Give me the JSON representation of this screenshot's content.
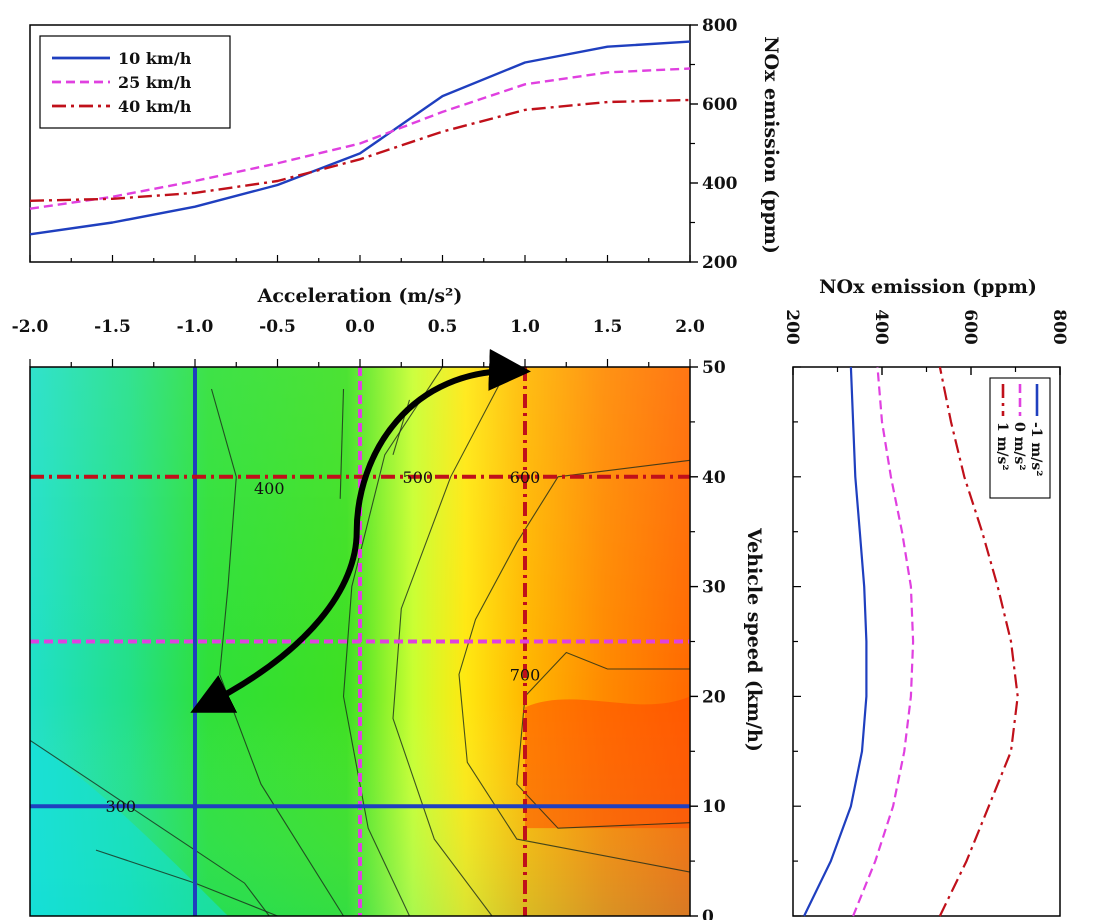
{
  "chart_data": [
    {
      "type": "line",
      "title": "",
      "xlabel": "Acceleration (m/s²)",
      "ylabel": "NOx emission (ppm)",
      "xlim": [
        -2.0,
        2.0
      ],
      "ylim": [
        200,
        800
      ],
      "x_ticks": [
        "-2.0",
        "-1.5",
        "-1.0",
        "-0.5",
        "0.0",
        "0.5",
        "1.0",
        "1.5",
        "2.0"
      ],
      "y_ticks": [
        "200",
        "400",
        "600",
        "800"
      ],
      "legend_position": "top-left",
      "x": [
        -2.0,
        -1.5,
        -1.0,
        -0.5,
        0.0,
        0.5,
        1.0,
        1.5,
        2.0
      ],
      "series": [
        {
          "name": "10 km/h",
          "color": "#1f3fbf",
          "dash": "solid",
          "values": [
            270,
            300,
            340,
            395,
            475,
            620,
            705,
            745,
            758
          ]
        },
        {
          "name": "25 km/h",
          "color": "#e040e0",
          "dash": "dashed",
          "values": [
            335,
            365,
            405,
            450,
            500,
            580,
            650,
            680,
            690
          ]
        },
        {
          "name": "40 km/h",
          "color": "#c0101a",
          "dash": "dashdot",
          "values": [
            355,
            360,
            375,
            405,
            460,
            530,
            585,
            605,
            610
          ]
        }
      ]
    },
    {
      "type": "heatmap",
      "title": "",
      "xlabel": "",
      "ylabel": "Vehicle speed (km/h)",
      "xlim": [
        -2.0,
        2.0
      ],
      "ylim": [
        0,
        50
      ],
      "y_ticks": [
        "0",
        "10",
        "20",
        "30",
        "40",
        "50"
      ],
      "contour_labels": [
        {
          "text": "300",
          "x": -1.45,
          "y": 10
        },
        {
          "text": "400",
          "x": -0.55,
          "y": 39
        },
        {
          "text": "500",
          "x": 0.35,
          "y": 40
        },
        {
          "text": "600",
          "x": 1.0,
          "y": 40
        },
        {
          "text": "700",
          "x": 1.0,
          "y": 22
        }
      ],
      "reference_lines": [
        {
          "orientation": "vertical",
          "value": -1.0,
          "color": "#1f3fbf",
          "dash": "solid"
        },
        {
          "orientation": "vertical",
          "value": 0.0,
          "color": "#e040e0",
          "dash": "dashed"
        },
        {
          "orientation": "vertical",
          "value": 1.0,
          "color": "#c0101a",
          "dash": "dashdot"
        },
        {
          "orientation": "horizontal",
          "value": 10,
          "color": "#1f3fbf",
          "dash": "solid"
        },
        {
          "orientation": "horizontal",
          "value": 25,
          "color": "#e040e0",
          "dash": "dashed"
        },
        {
          "orientation": "horizontal",
          "value": 40,
          "color": "#c0101a",
          "dash": "dashdot"
        }
      ],
      "annotation": "curved double-headed arrow from (-1.0, 19) to (1.0, 50)"
    },
    {
      "type": "line",
      "title": "",
      "xlabel": "NOx emission (ppm)",
      "ylabel": "",
      "xlim": [
        200,
        800
      ],
      "ylim": [
        0,
        50
      ],
      "x_ticks": [
        "200",
        "400",
        "600",
        "800"
      ],
      "legend_position": "top-right",
      "y": [
        0,
        5,
        10,
        15,
        20,
        25,
        30,
        35,
        40,
        45,
        50
      ],
      "series": [
        {
          "name": "-1 m/s²",
          "color": "#1f3fbf",
          "dash": "solid",
          "values": [
            225,
            285,
            330,
            355,
            365,
            365,
            360,
            350,
            340,
            335,
            330
          ]
        },
        {
          "name": "0 m/s²",
          "color": "#e040e0",
          "dash": "dashed",
          "values": [
            335,
            385,
            425,
            450,
            465,
            470,
            465,
            445,
            420,
            400,
            390
          ]
        },
        {
          "name": "1 m/s²",
          "color": "#c0101a",
          "dash": "dashdot",
          "values": [
            530,
            590,
            640,
            690,
            705,
            690,
            660,
            625,
            585,
            555,
            530
          ]
        }
      ]
    }
  ]
}
